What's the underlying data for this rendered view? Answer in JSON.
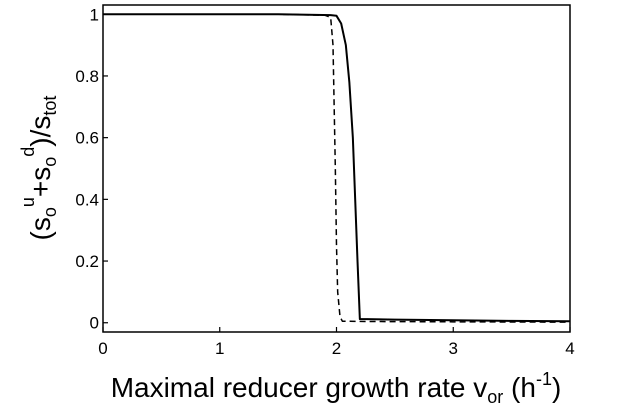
{
  "chart_data": {
    "type": "line",
    "title": "",
    "xlabel": {
      "main": "Maximal reducer growth rate v",
      "subscript": "or",
      "paren_open": " (h",
      "superscript": "-1",
      "paren_close": ")"
    },
    "ylabel": {
      "open": "(s",
      "sub1": "o",
      "sup1": "u",
      "plus": "+s",
      "sub2": "o",
      "sup2": "d",
      "close": ")/s",
      "sub3": "tot"
    },
    "xlim": [
      0,
      4
    ],
    "ylim": [
      -0.03,
      1.03
    ],
    "xticks": [
      "0",
      "1",
      "2",
      "3",
      "4"
    ],
    "xtick_values": [
      0,
      1,
      2,
      3,
      4
    ],
    "yticks": [
      "0",
      "0.2",
      "0.4",
      "0.6",
      "0.8",
      "1"
    ],
    "ytick_values": [
      0,
      0.2,
      0.4,
      0.6,
      0.8,
      1
    ],
    "grid": false,
    "series": [
      {
        "style": "solid",
        "color": "#000000",
        "x": [
          0,
          1.5,
          1.95,
          2.0,
          2.04,
          2.08,
          2.11,
          2.14,
          2.16,
          2.18,
          2.2,
          2.5,
          3.0,
          3.5,
          4.0
        ],
        "y": [
          1,
          1,
          0.997,
          0.995,
          0.97,
          0.9,
          0.78,
          0.6,
          0.4,
          0.2,
          0.012,
          0.01,
          0.008,
          0.006,
          0.005
        ]
      },
      {
        "style": "dashed",
        "color": "#000000",
        "x": [
          0,
          1.5,
          1.9,
          1.95,
          1.97,
          1.99,
          2.0,
          2.01,
          2.03,
          2.05,
          2.3,
          3.0,
          4.0
        ],
        "y": [
          1,
          1,
          0.997,
          0.99,
          0.9,
          0.5,
          0.25,
          0.1,
          0.02,
          0.005,
          0.004,
          0.003,
          0.002
        ]
      }
    ]
  }
}
